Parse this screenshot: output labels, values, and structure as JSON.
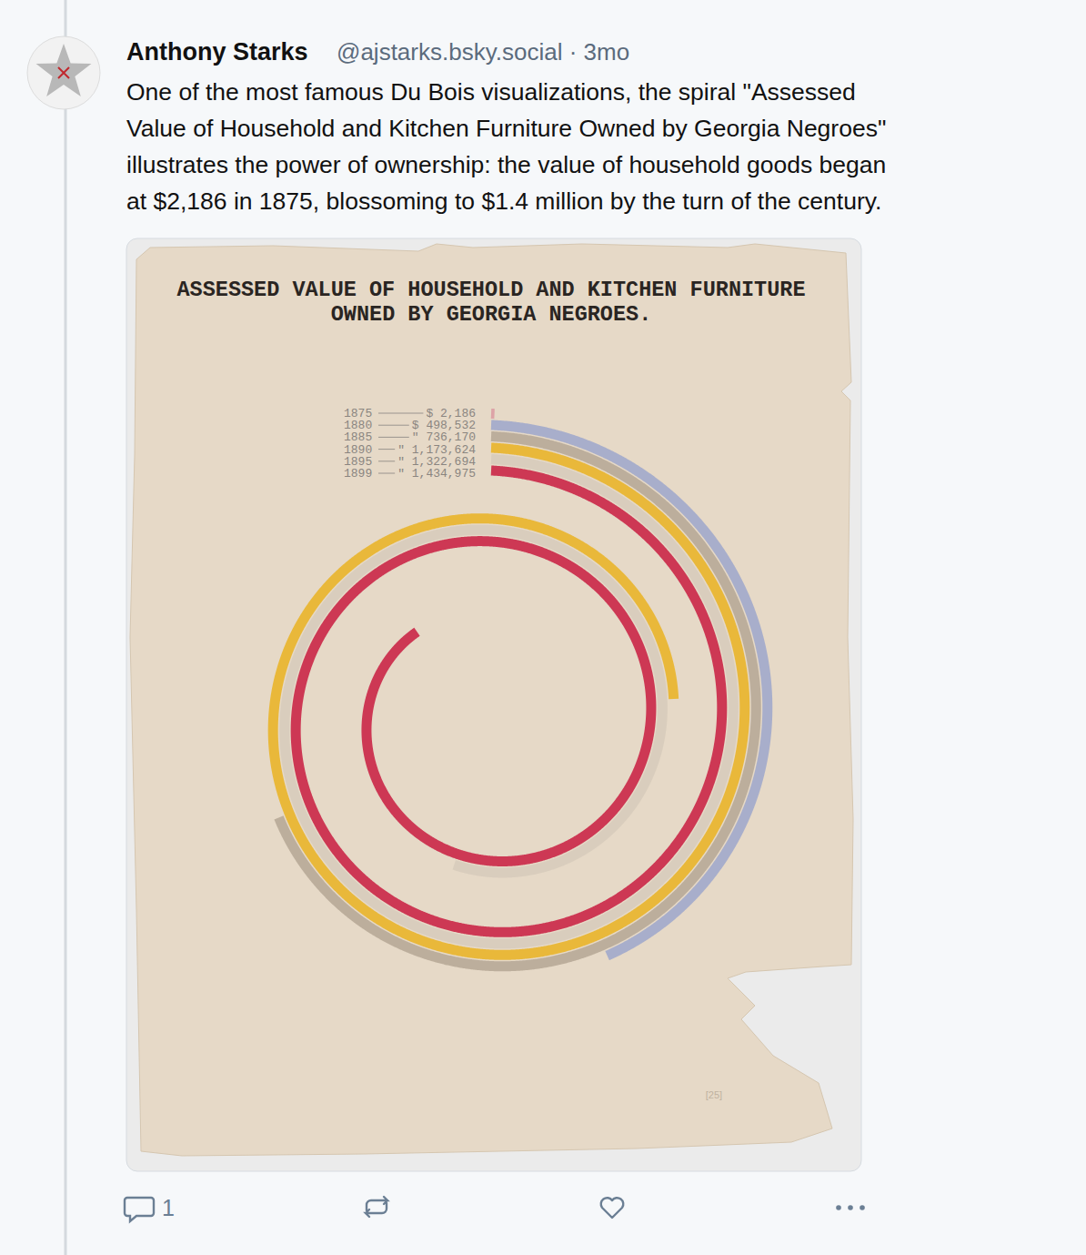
{
  "post": {
    "author": "Anthony Starks",
    "meta": "@ajstarks.bsky.social · 3mo",
    "text": [
      "One of the most famous Du Bois visualizations, the spiral \"Assessed",
      "Value of Household and Kitchen Furniture Owned by Georgia Negroes\"",
      "illustrates the power of ownership: the value of household goods began",
      "at $2,186 in 1875, blossoming to $1.4 million by the turn of the century."
    ],
    "reply_count": 1
  },
  "chart_data": {
    "type": "spiral",
    "title": [
      "ASSESSED VALUE OF HOUSEHOLD AND KITCHEN FURNITURE",
      "OWNED BY GEORGIA NEGROES."
    ],
    "categories": [
      "1875",
      "1880",
      "1885",
      "1890",
      "1895",
      "1899"
    ],
    "values": [
      2186,
      498532,
      736170,
      1173624,
      1322694,
      1434975
    ],
    "value_labels": [
      "$ 2,186",
      "$ 498,532",
      "\" 736,170",
      "\" 1,173,624",
      "\" 1,322,694",
      "\" 1,434,975"
    ],
    "colors": [
      "#dc9ea4",
      "#a3aacb",
      "#b9aa98",
      "#e9b52e",
      "#d8ccbc",
      "#cb2a4a"
    ],
    "tick_labels": false,
    "annotation": "[25]"
  }
}
